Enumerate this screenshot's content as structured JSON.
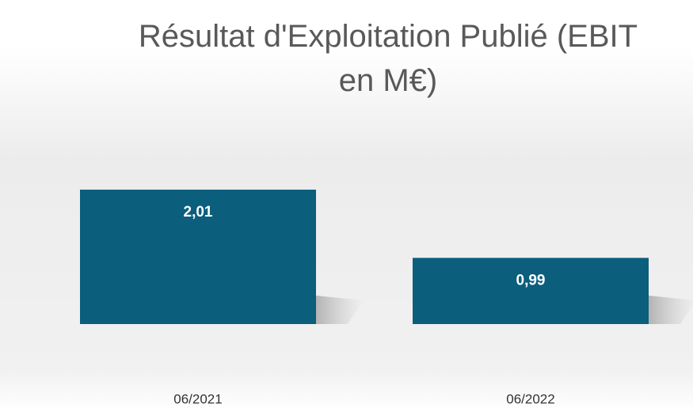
{
  "chart_data": {
    "type": "bar",
    "title": "Résultat d'Exploitation Publié (EBIT en M€)",
    "categories": [
      "06/2021",
      "06/2022"
    ],
    "values": [
      2.01,
      0.99
    ],
    "value_labels": [
      "2,01",
      "0,99"
    ],
    "color": "#0b5e7c"
  }
}
